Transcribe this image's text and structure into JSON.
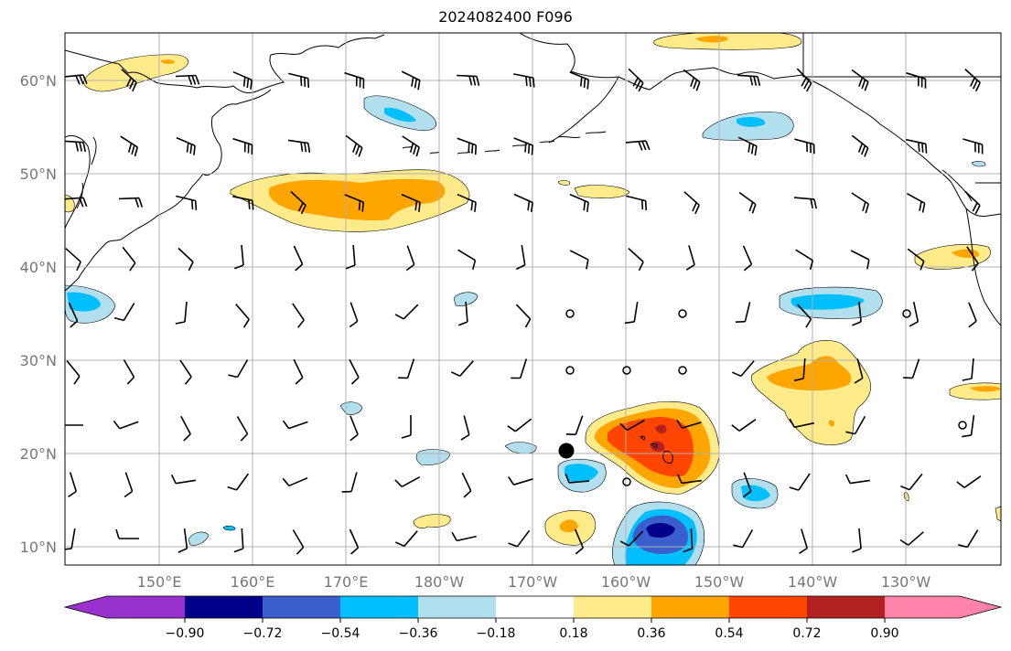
{
  "title": "2024082400 F096",
  "lat_labels": [
    "10°N",
    "20°N",
    "30°N",
    "40°N",
    "50°N",
    "60°N"
  ],
  "lon_labels": [
    "150°E",
    "160°E",
    "170°E",
    "180°W",
    "170°W",
    "160°W",
    "150°W",
    "140°W",
    "130°W"
  ],
  "colorbar": {
    "ticks": [
      "−0.90",
      "−0.72",
      "−0.54",
      "−0.36",
      "−0.18",
      "0.18",
      "0.36",
      "0.54",
      "0.72",
      "0.90"
    ],
    "colors": [
      "#9932cc",
      "#00008b",
      "#3a5fcd",
      "#00bfff",
      "#b2dfee",
      "#ffffff",
      "#ffeb8a",
      "#ffa500",
      "#ff4500",
      "#b22222",
      "#ff82ab"
    ]
  },
  "colors": {
    "yellow": "#ffeb8a",
    "orange": "#ffa500",
    "red_orange": "#ff4500",
    "dark_red": "#b22222",
    "light_blue": "#b2dfee",
    "blue": "#00bfff",
    "royal_blue": "#3a5fcd",
    "navy": "#00008b",
    "grid": "#b0b0b0"
  }
}
